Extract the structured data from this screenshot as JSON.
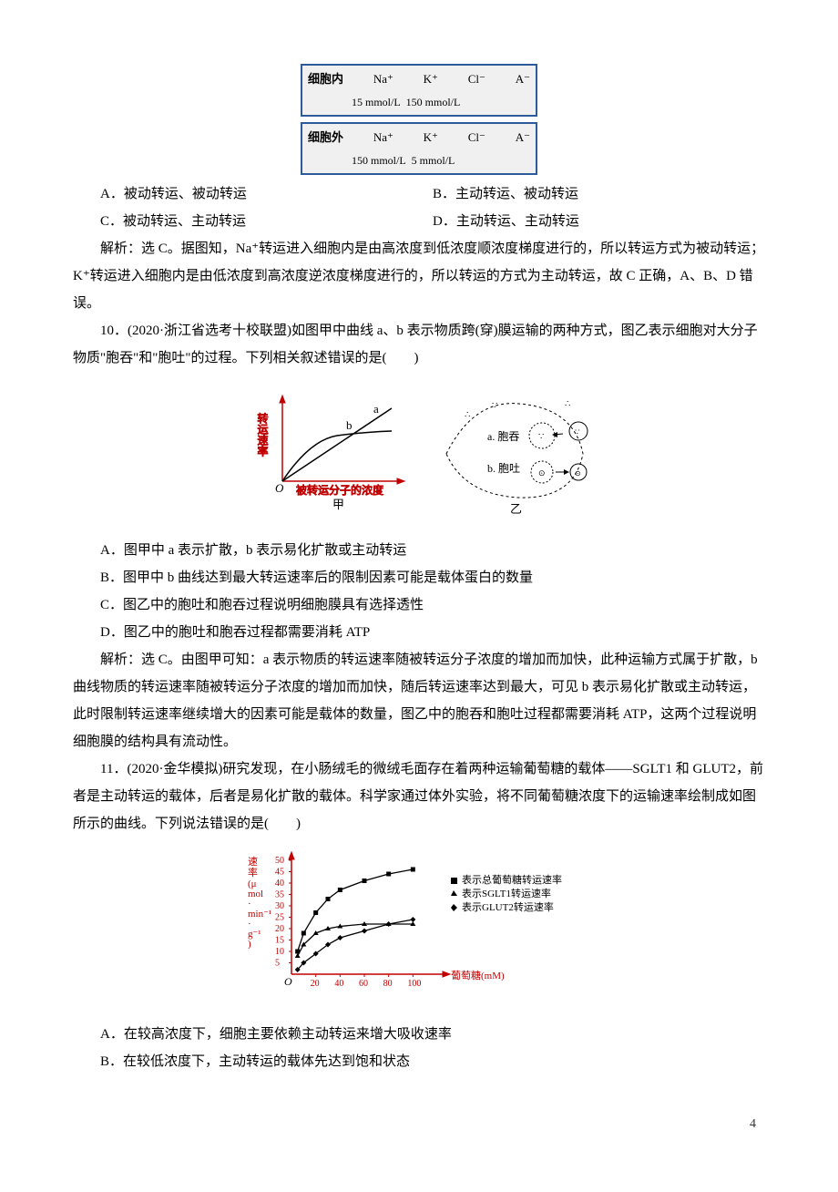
{
  "ion_table": {
    "rows": [
      {
        "label": "细胞内",
        "ions": [
          "Na⁺",
          "K⁺",
          "Cl⁻",
          "A⁻"
        ],
        "conc": [
          "15 mmol/L",
          "150 mmol/L"
        ]
      },
      {
        "label": "细胞外",
        "ions": [
          "Na⁺",
          "K⁺",
          "Cl⁻",
          "A⁻"
        ],
        "conc": [
          "150 mmol/L",
          "5 mmol/L"
        ]
      }
    ],
    "border_color": "#2e5c9a",
    "bg_color": "#f0f0f0"
  },
  "q9": {
    "options": {
      "A": "A．被动转运、被动转运",
      "B": "B．主动转运、被动转运",
      "C": "C．被动转运、主动转运",
      "D": "D．主动转运、主动转运"
    },
    "explain": "解析：选 C。据图知，Na⁺转运进入细胞内是由高浓度到低浓度顺浓度梯度进行的，所以转运方式为被动转运；K⁺转运进入细胞内是由低浓度到高浓度逆浓度梯度进行的，所以转运的方式为主动转运，故 C 正确，A、B、D 错误。"
  },
  "q10": {
    "stem": "10．(2020·浙江省选考十校联盟)如图甲中曲线 a、b 表示物质跨(穿)膜运输的两种方式，图乙表示细胞对大分子物质\"胞吞\"和\"胞吐\"的过程。下列相关叙述错误的是(　　)",
    "figure": {
      "type": "diagram",
      "left": {
        "ylabel": "转运速率",
        "xlabel": "被转运分子的浓度",
        "curves": [
          "a",
          "b"
        ],
        "origin": "O",
        "title": "甲",
        "axis_color": "#c00000",
        "label_color": "#c00000"
      },
      "right": {
        "labels": [
          "a. 胞吞",
          "b. 胞吐"
        ],
        "title": "乙"
      }
    },
    "options": {
      "A": "A．图甲中 a 表示扩散，b 表示易化扩散或主动转运",
      "B": "B．图甲中 b 曲线达到最大转运速率后的限制因素可能是载体蛋白的数量",
      "C": "C．图乙中的胞吐和胞吞过程说明细胞膜具有选择透性",
      "D": "D．图乙中的胞吐和胞吞过程都需要消耗 ATP"
    },
    "explain": "解析：选 C。由图甲可知：a 表示物质的转运速率随被转运分子浓度的增加而加快，此种运输方式属于扩散，b 曲线物质的转运速率随被转运分子浓度的增加而加快，随后转运速率达到最大，可见 b 表示易化扩散或主动转运，此时限制转运速率继续增大的因素可能是载体的数量，图乙中的胞吞和胞吐过程都需要消耗 ATP，这两个过程说明细胞膜的结构具有流动性。"
  },
  "q11": {
    "stem": "11．(2020·金华模拟)研究发现，在小肠绒毛的微绒毛面存在着两种运输葡萄糖的载体——SGLT1 和 GLUT2，前者是主动转运的载体，后者是易化扩散的载体。科学家通过体外实验，将不同葡萄糖浓度下的运输速率绘制成如图所示的曲线。下列说法错误的是(　　)",
    "chart": {
      "type": "line",
      "ylabel": "速率(μmol·min⁻¹·g⁻¹)",
      "xlabel": "葡萄糖(mM)",
      "xlim": [
        0,
        120
      ],
      "ylim": [
        0,
        50
      ],
      "xticks": [
        20,
        40,
        60,
        80,
        100
      ],
      "yticks": [
        5,
        10,
        15,
        20,
        25,
        30,
        35,
        40,
        45,
        50
      ],
      "series": [
        {
          "name": "表示总葡萄糖转运速率",
          "marker": "square",
          "color": "#000000",
          "points": [
            [
              5,
              10
            ],
            [
              10,
              18
            ],
            [
              20,
              27
            ],
            [
              30,
              33
            ],
            [
              40,
              37
            ],
            [
              60,
              41
            ],
            [
              80,
              44
            ],
            [
              100,
              46
            ]
          ]
        },
        {
          "name": "表示SGLT1转运速率",
          "marker": "triangle",
          "color": "#000000",
          "points": [
            [
              5,
              8
            ],
            [
              10,
              13
            ],
            [
              20,
              18
            ],
            [
              30,
              20
            ],
            [
              40,
              21
            ],
            [
              60,
              22
            ],
            [
              80,
              22
            ],
            [
              100,
              22
            ]
          ]
        },
        {
          "name": "表示GLUT2转运速率",
          "marker": "diamond",
          "color": "#000000",
          "points": [
            [
              5,
              2
            ],
            [
              10,
              5
            ],
            [
              20,
              9
            ],
            [
              30,
              13
            ],
            [
              40,
              16
            ],
            [
              60,
              19
            ],
            [
              80,
              22
            ],
            [
              100,
              24
            ]
          ]
        }
      ],
      "axis_color": "#c00000",
      "origin": "O"
    },
    "options": {
      "A": "A．在较高浓度下，细胞主要依赖主动转运来增大吸收速率",
      "B": "B．在较低浓度下，主动转运的载体先达到饱和状态"
    }
  },
  "page_number": "4"
}
